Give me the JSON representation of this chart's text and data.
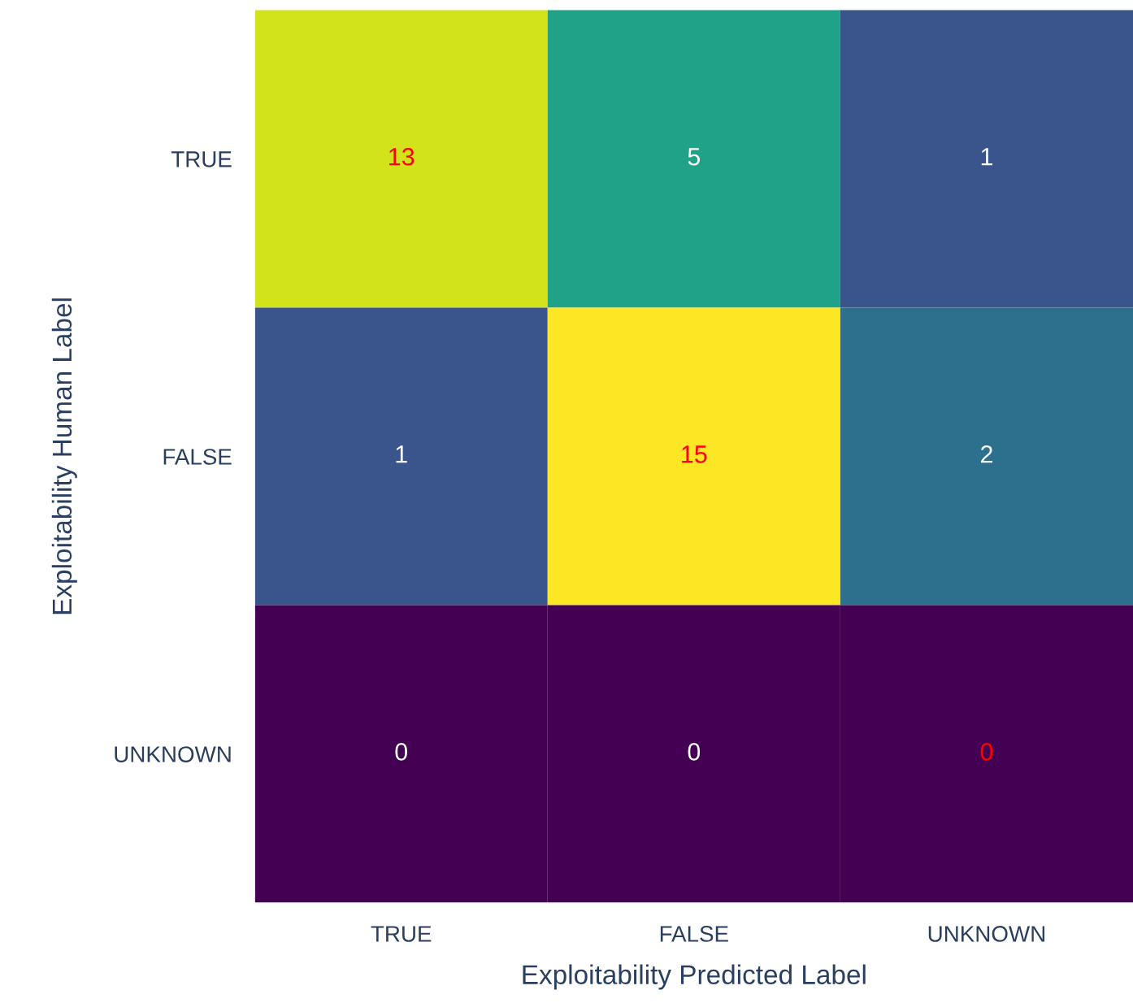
{
  "chart_data": {
    "type": "heatmap",
    "xlabel": "Exploitability Predicted Label",
    "ylabel": "Exploitability Human Label",
    "categories": [
      "TRUE",
      "FALSE",
      "UNKNOWN"
    ],
    "y_categories": [
      "TRUE",
      "FALSE",
      "UNKNOWN"
    ],
    "cells": [
      [
        13,
        5,
        1
      ],
      [
        1,
        15,
        2
      ],
      [
        0,
        0,
        0
      ]
    ],
    "data_labels": true
  }
}
